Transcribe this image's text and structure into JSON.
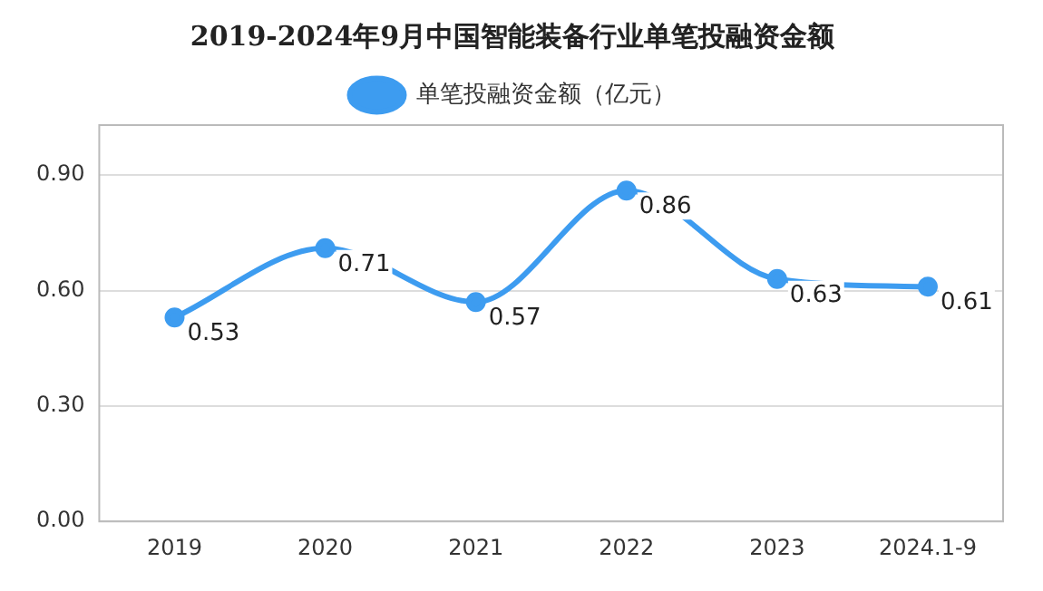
{
  "chart_data": {
    "type": "line",
    "title": "2019-2024年9月中国智能装备行业单笔投融资金额",
    "categories": [
      "2019",
      "2020",
      "2021",
      "2022",
      "2023",
      "2024.1-9"
    ],
    "series": [
      {
        "name": "单笔投融资金额（亿元）",
        "color": "#3d9cf0",
        "values": [
          0.53,
          0.71,
          0.57,
          0.86,
          0.63,
          0.61
        ]
      }
    ],
    "ylim": [
      0,
      1.03
    ],
    "yticks": [
      {
        "value": 0,
        "label": "0.00"
      },
      {
        "value": 0.3,
        "label": "0.30"
      },
      {
        "value": 0.6,
        "label": "0.60"
      },
      {
        "value": 0.9,
        "label": "0.90"
      }
    ],
    "grid": "y",
    "legend": "top",
    "marker": "circle",
    "line_style": "solid",
    "data_labels": true
  }
}
